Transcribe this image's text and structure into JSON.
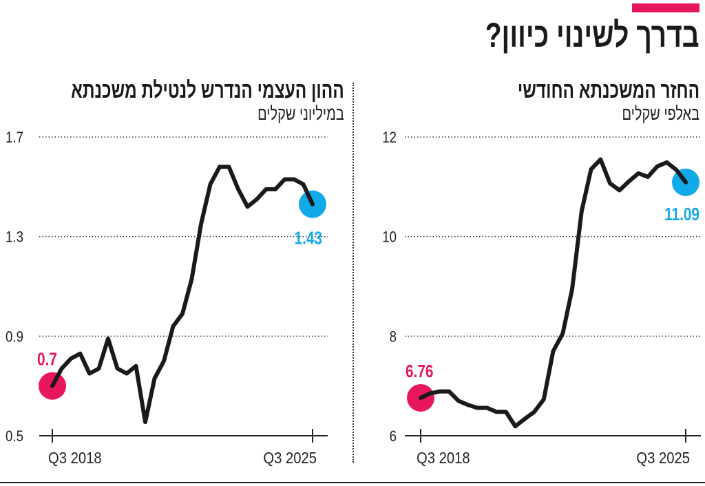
{
  "header": {
    "title": "בדרך לשינוי כיוון?",
    "accent_color": "#e8175d"
  },
  "colors": {
    "line": "#1a1a1a",
    "start_marker": "#e8175d",
    "end_marker": "#12a9e9"
  },
  "chart_data": [
    {
      "type": "line",
      "title": "החזר המשכנתא החודשי",
      "subtitle": "באלפי שקלים",
      "x_tick_labels": [
        "Q3 2018",
        "Q3 2025"
      ],
      "x_range": [
        "Q3 2018",
        "Q3 2025"
      ],
      "y_ticks": [
        "6",
        "8",
        "10",
        "12"
      ],
      "ylim": [
        6,
        12
      ],
      "grid": "horizontal dotted",
      "start_label": "6.76",
      "end_label": "11.09",
      "values": [
        6.76,
        6.85,
        6.89,
        6.89,
        6.7,
        6.62,
        6.56,
        6.56,
        6.48,
        6.48,
        6.19,
        6.34,
        6.48,
        6.73,
        7.7,
        8.05,
        8.94,
        10.51,
        11.35,
        11.55,
        11.07,
        10.93,
        11.11,
        11.27,
        11.2,
        11.41,
        11.49,
        11.34,
        11.09
      ]
    },
    {
      "type": "line",
      "title": "ההון העצמי הנדרש לנטילת משכנתא",
      "subtitle": "במיליוני שקלים",
      "x_tick_labels": [
        "Q3 2018",
        "Q3 2025"
      ],
      "x_range": [
        "Q3 2018",
        "Q3 2025"
      ],
      "y_ticks": [
        "0.5",
        "0.9",
        "1.3",
        "1.7"
      ],
      "ylim": [
        0.5,
        1.7
      ],
      "grid": "horizontal dotted",
      "start_label": "0.7",
      "end_label": "1.43",
      "values": [
        0.7,
        0.77,
        0.81,
        0.83,
        0.75,
        0.77,
        0.89,
        0.77,
        0.75,
        0.78,
        0.555,
        0.73,
        0.8,
        0.94,
        0.99,
        1.13,
        1.35,
        1.51,
        1.58,
        1.58,
        1.49,
        1.42,
        1.45,
        1.49,
        1.49,
        1.53,
        1.53,
        1.51,
        1.43
      ]
    }
  ]
}
